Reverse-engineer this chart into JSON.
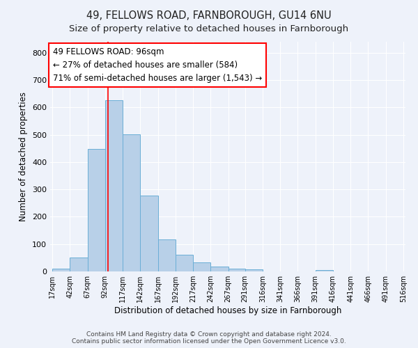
{
  "title": "49, FELLOWS ROAD, FARNBOROUGH, GU14 6NU",
  "subtitle": "Size of property relative to detached houses in Farnborough",
  "xlabel": "Distribution of detached houses by size in Farnborough",
  "ylabel": "Number of detached properties",
  "footer": "Contains HM Land Registry data © Crown copyright and database right 2024.\nContains public sector information licensed under the Open Government Licence v3.0.",
  "bar_edges": [
    17,
    42,
    67,
    92,
    117,
    142,
    167,
    192,
    217,
    242,
    267,
    291,
    316,
    341,
    366,
    391,
    416,
    441,
    466,
    491,
    516
  ],
  "bar_heights": [
    11,
    52,
    448,
    627,
    502,
    278,
    118,
    62,
    32,
    19,
    10,
    8,
    0,
    0,
    0,
    5,
    0,
    0,
    0,
    0
  ],
  "bar_color": "#b8d0e8",
  "bar_edge_color": "#6aaed6",
  "red_line_x": 96,
  "annotation_title": "49 FELLOWS ROAD: 96sqm",
  "annotation_line1": "← 27% of detached houses are smaller (584)",
  "annotation_line2": "71% of semi-detached houses are larger (1,543) →",
  "ylim": [
    0,
    840
  ],
  "yticks": [
    0,
    100,
    200,
    300,
    400,
    500,
    600,
    700,
    800
  ],
  "background_color": "#eef2fa",
  "grid_color": "#ffffff",
  "title_fontsize": 10.5,
  "subtitle_fontsize": 9.5,
  "xlabel_fontsize": 8.5,
  "ylabel_fontsize": 8.5,
  "ann_fontsize": 8.5
}
